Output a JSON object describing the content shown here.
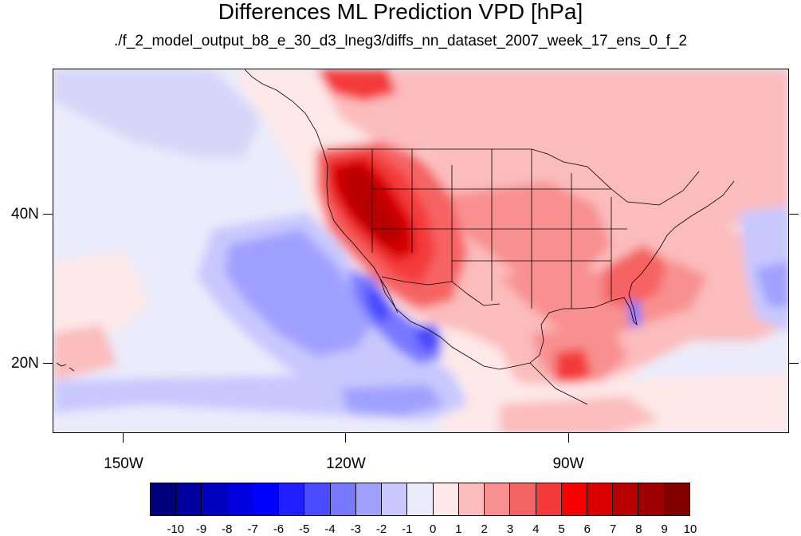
{
  "title": "Differences ML Prediction VPD [hPa]",
  "subtitle": "./f_2_model_output_b8_e_30_d3_lneg3/diffs_nn_dataset_2007_week_17_ens_0_f_2",
  "axes": {
    "lat_labels": [
      "40N",
      "20N"
    ],
    "lon_labels": [
      "150W",
      "120W",
      "90W"
    ]
  },
  "colorbar": {
    "labels": [
      "-10",
      "-9",
      "-8",
      "-7",
      "-6",
      "-5",
      "-4",
      "-3",
      "-2",
      "-1",
      "0",
      "1",
      "2",
      "3",
      "4",
      "5",
      "6",
      "7",
      "8",
      "9",
      "10"
    ],
    "colors": [
      "#00007f",
      "#00009f",
      "#0000bf",
      "#0000df",
      "#0000ff",
      "#2020ff",
      "#4a4aff",
      "#7878ff",
      "#a0a0ff",
      "#c8c8ff",
      "#ebebfb",
      "#fde8e8",
      "#fbbcbc",
      "#f89090",
      "#f56464",
      "#f43a3a",
      "#f80000",
      "#d80000",
      "#b80000",
      "#9c0000",
      "#800000"
    ]
  },
  "map": {
    "background_color": "#ebebfb",
    "coast_color": "#000000"
  }
}
